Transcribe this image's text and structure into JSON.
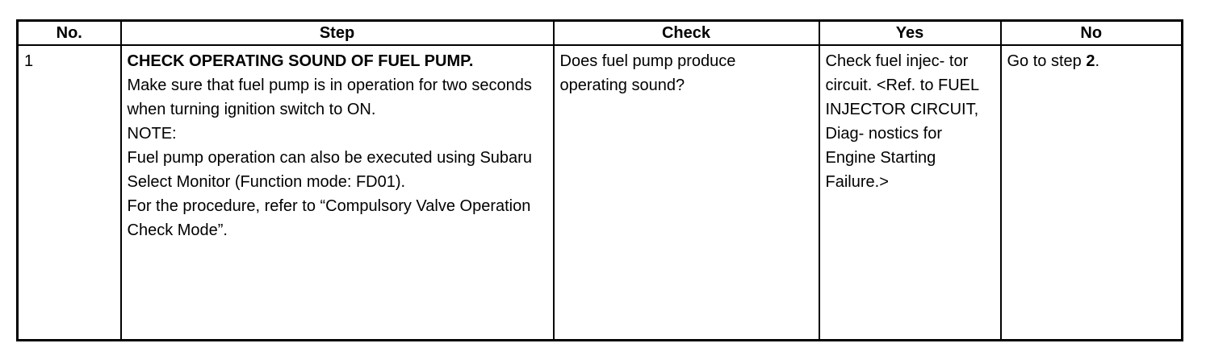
{
  "headers": {
    "no": "No.",
    "step": "Step",
    "check": "Check",
    "yes": "Yes",
    "no_col": "No"
  },
  "rows": [
    {
      "no": "1",
      "step_title": "CHECK OPERATING SOUND OF FUEL PUMP.",
      "step_lines": [
        "Make sure that fuel pump is in operation for two seconds when turning ignition switch to ON.",
        "NOTE:",
        "Fuel pump operation can also be executed using Subaru Select Monitor (Function mode: FD01).",
        "For the procedure, refer to “Compulsory Valve Operation Check Mode”."
      ],
      "check": "Does fuel pump produce operating sound?",
      "yes": "Check fuel injec- tor circuit. <Ref. to FUEL INJECTOR CIRCUIT, Diag- nostics for Engine Starting Failure.>",
      "no_prefix": "Go to step ",
      "no_step": "2",
      "no_suffix": "."
    }
  ]
}
